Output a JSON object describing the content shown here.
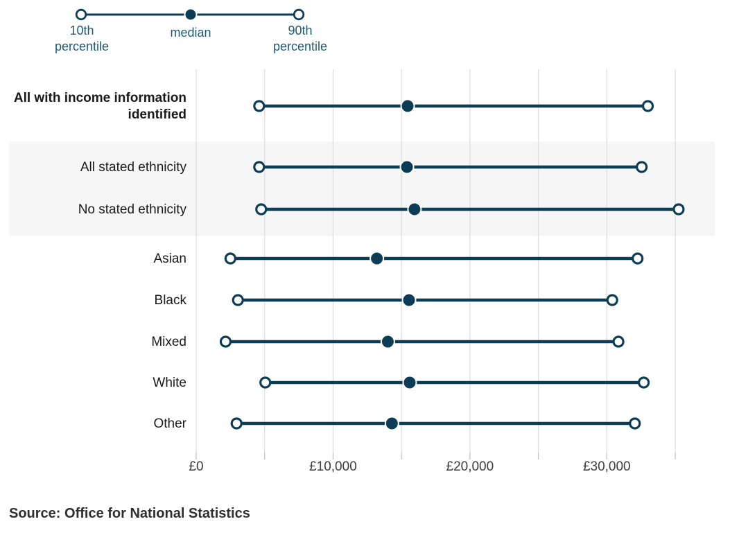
{
  "legend": {
    "items": [
      {
        "label": "10th percentile",
        "marker": "open"
      },
      {
        "label": "median",
        "marker": "filled"
      },
      {
        "label": "90th percentile",
        "marker": "open"
      }
    ]
  },
  "source": {
    "text": "Source: Office for National Statistics"
  },
  "colors": {
    "accent": "#0d3d56",
    "legend_text": "#1e5a74",
    "category_text": "#1a1a1a",
    "axis_text": "#3c3c3e",
    "gridline": "#dedede",
    "tick": "#c4c4c4",
    "band": "#f6f6f7",
    "background": "#ffffff"
  },
  "chart_data": {
    "type": "dumbbell",
    "title": "",
    "xlabel": "",
    "ylabel": "",
    "categories": [
      "All with income information identified",
      "All stated ethnicity",
      "No stated ethnicity",
      "Asian",
      "Black",
      "Mixed",
      "White",
      "Other"
    ],
    "bold_categories": [
      0
    ],
    "highlight_band_categories": [
      1,
      2
    ],
    "series": [
      {
        "name": "10th percentile",
        "marker": "open",
        "values": [
          4600,
          4600,
          4750,
          2500,
          3050,
          2150,
          5050,
          2950
        ]
      },
      {
        "name": "median",
        "marker": "filled",
        "values": [
          15450,
          15400,
          15950,
          13200,
          15550,
          14000,
          15600,
          14300
        ]
      },
      {
        "name": "90th percentile",
        "marker": "open",
        "values": [
          33000,
          32550,
          35250,
          32250,
          30400,
          30850,
          32700,
          32050
        ]
      }
    ],
    "xlim": [
      0,
      37900
    ],
    "xticks": [
      0,
      10000,
      20000,
      30000
    ],
    "xtick_labels": [
      "£0",
      "£10,000",
      "£20,000",
      "£30,000"
    ],
    "gridline_values": [
      0,
      5000,
      10000,
      15000,
      20000,
      25000,
      30000,
      35000
    ],
    "grid": true,
    "legend_position": "top-left"
  }
}
